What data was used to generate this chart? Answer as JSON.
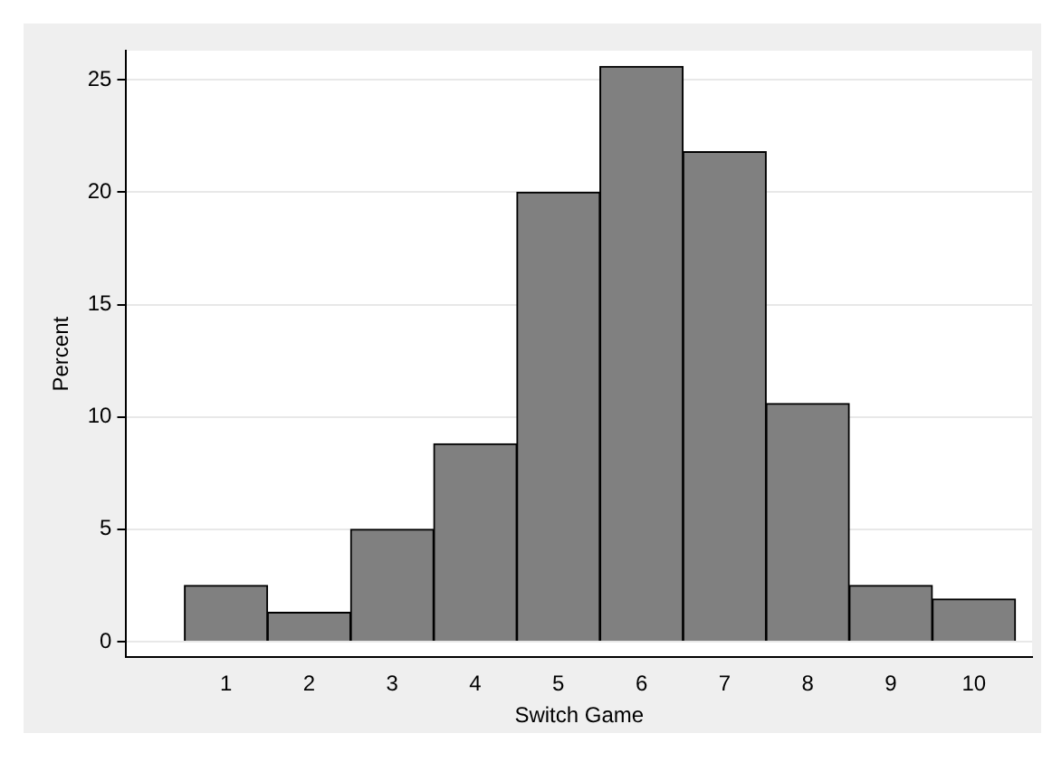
{
  "chart_data": {
    "type": "histogram",
    "xlabel": "Switch Game",
    "ylabel": "Percent",
    "bins": [
      0.5,
      1.5,
      2.5,
      3.5,
      4.5,
      5.5,
      6.5,
      7.5,
      8.5,
      9.5,
      10.5
    ],
    "values": [
      2.5,
      1.3,
      5,
      8.8,
      20,
      25.6,
      21.8,
      10.6,
      2.5,
      1.9
    ],
    "color": "#808080",
    "xlim": [
      -0.2,
      10.7
    ],
    "xticks": [
      1,
      2,
      3,
      4,
      5,
      6,
      7,
      8,
      9,
      10
    ],
    "ylim": [
      -0.7,
      26.3
    ],
    "yticks": [
      0,
      5,
      10,
      15,
      20,
      25
    ],
    "grid": "y"
  }
}
